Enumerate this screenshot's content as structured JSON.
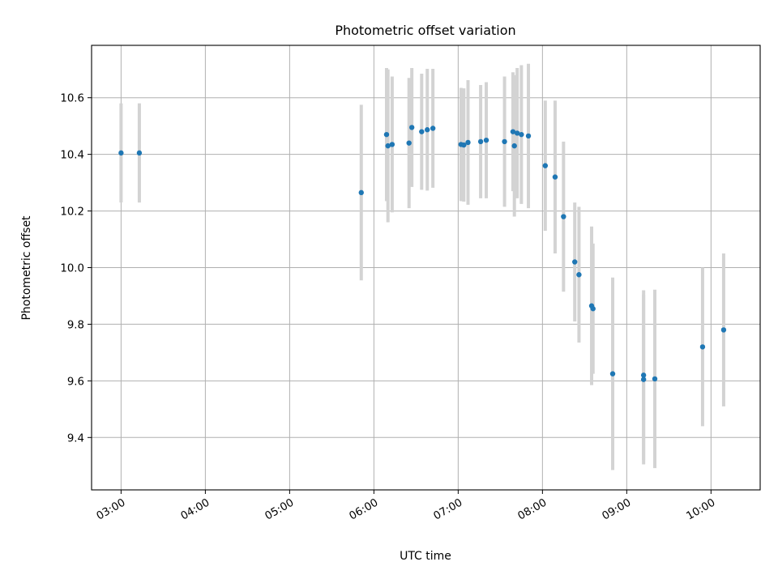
{
  "chart_data": {
    "type": "scatter",
    "title": "Photometric offset variation",
    "xlabel": "UTC time",
    "ylabel": "Photometric offset",
    "x_axis": {
      "kind": "time",
      "range": [
        "02:39",
        "10:35"
      ],
      "ticks": [
        "03:00",
        "04:00",
        "05:00",
        "06:00",
        "07:00",
        "08:00",
        "09:00",
        "10:00"
      ]
    },
    "y_axis": {
      "range": [
        9.215,
        10.785
      ],
      "ticks": [
        9.4,
        9.6,
        9.8,
        10.0,
        10.2,
        10.4,
        10.6
      ]
    },
    "grid": true,
    "error_bars": true,
    "colors": {
      "points": "#1f77b4",
      "error_bars": "#d3d3d3",
      "grid": "#b0b0b0"
    },
    "points": [
      {
        "t": "03:00",
        "y": 10.405,
        "err": 0.175
      },
      {
        "t": "03:13",
        "y": 10.405,
        "err": 0.175
      },
      {
        "t": "05:51",
        "y": 10.265,
        "err": 0.31
      },
      {
        "t": "06:09",
        "y": 10.47,
        "err": 0.235
      },
      {
        "t": "06:10",
        "y": 10.43,
        "err": 0.27
      },
      {
        "t": "06:13",
        "y": 10.435,
        "err": 0.24
      },
      {
        "t": "06:25",
        "y": 10.44,
        "err": 0.23
      },
      {
        "t": "06:27",
        "y": 10.495,
        "err": 0.21
      },
      {
        "t": "06:34",
        "y": 10.48,
        "err": 0.205
      },
      {
        "t": "06:38",
        "y": 10.487,
        "err": 0.215
      },
      {
        "t": "06:42",
        "y": 10.492,
        "err": 0.21
      },
      {
        "t": "07:02",
        "y": 10.435,
        "err": 0.2
      },
      {
        "t": "07:04",
        "y": 10.433,
        "err": 0.2
      },
      {
        "t": "07:07",
        "y": 10.442,
        "err": 0.22
      },
      {
        "t": "07:16",
        "y": 10.445,
        "err": 0.2
      },
      {
        "t": "07:20",
        "y": 10.45,
        "err": 0.205
      },
      {
        "t": "07:33",
        "y": 10.445,
        "err": 0.23
      },
      {
        "t": "07:39",
        "y": 10.48,
        "err": 0.21
      },
      {
        "t": "07:40",
        "y": 10.43,
        "err": 0.25
      },
      {
        "t": "07:42",
        "y": 10.475,
        "err": 0.23
      },
      {
        "t": "07:45",
        "y": 10.47,
        "err": 0.245
      },
      {
        "t": "07:50",
        "y": 10.465,
        "err": 0.255
      },
      {
        "t": "08:02",
        "y": 10.36,
        "err": 0.23
      },
      {
        "t": "08:09",
        "y": 10.32,
        "err": 0.27
      },
      {
        "t": "08:15",
        "y": 10.18,
        "err": 0.265
      },
      {
        "t": "08:23",
        "y": 10.02,
        "err": 0.21
      },
      {
        "t": "08:26",
        "y": 9.975,
        "err": 0.24
      },
      {
        "t": "08:35",
        "y": 9.865,
        "err": 0.28
      },
      {
        "t": "08:36",
        "y": 9.855,
        "err": 0.23
      },
      {
        "t": "08:50",
        "y": 9.625,
        "err": 0.34
      },
      {
        "t": "09:12",
        "y": 9.62,
        "err": 0.3
      },
      {
        "t": "09:12",
        "y": 9.605,
        "err": 0.3
      },
      {
        "t": "09:20",
        "y": 9.607,
        "err": 0.315
      },
      {
        "t": "09:54",
        "y": 9.72,
        "err": 0.28
      },
      {
        "t": "10:09",
        "y": 9.78,
        "err": 0.27
      }
    ]
  }
}
